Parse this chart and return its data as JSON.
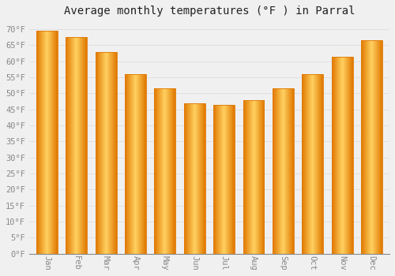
{
  "title": "Average monthly temperatures (°F ) in Parral",
  "months": [
    "Jan",
    "Feb",
    "Mar",
    "Apr",
    "May",
    "Jun",
    "Jul",
    "Aug",
    "Sep",
    "Oct",
    "Nov",
    "Dec"
  ],
  "values": [
    69.5,
    67.5,
    63.0,
    56.0,
    51.5,
    47.0,
    46.5,
    48.0,
    51.5,
    56.0,
    61.5,
    66.5
  ],
  "bar_color_light": "#FFD060",
  "bar_color_main": "#FFA500",
  "bar_color_dark": "#E07800",
  "background_color": "#F0F0F0",
  "grid_color": "#DDDDDD",
  "tick_label_color": "#888888",
  "title_color": "#222222",
  "ylim": [
    0,
    72
  ],
  "yticks": [
    0,
    5,
    10,
    15,
    20,
    25,
    30,
    35,
    40,
    45,
    50,
    55,
    60,
    65,
    70
  ],
  "title_fontsize": 10,
  "tick_fontsize": 7.5
}
